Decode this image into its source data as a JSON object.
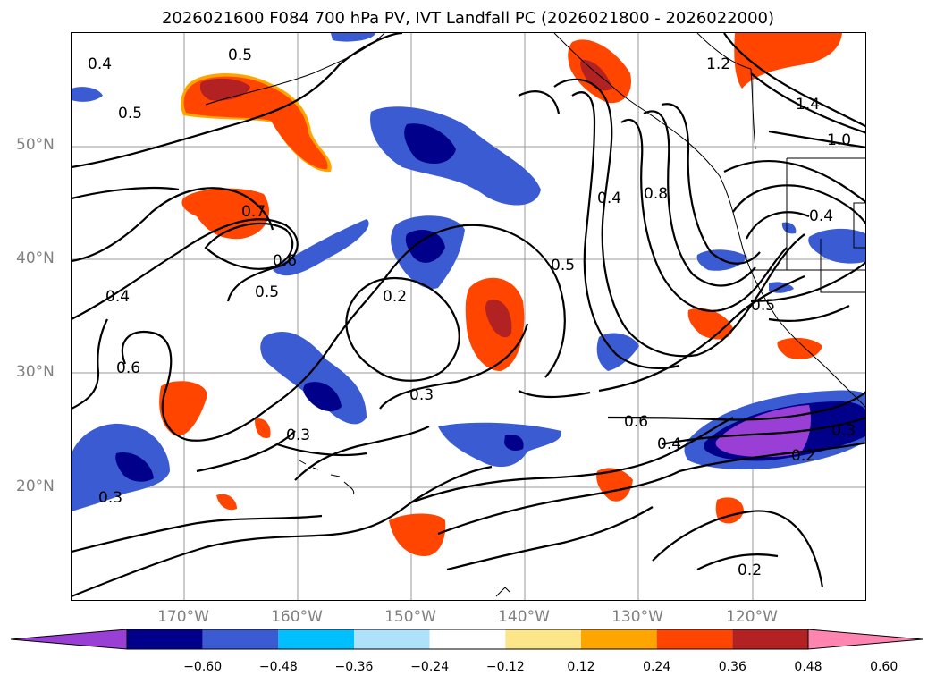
{
  "title": "2026021600 F084 700 hPa PV, IVT Landfall PC (2026021800 - 2026022000)",
  "map": {
    "lat_labels": [
      "50°N",
      "40°N",
      "30°N",
      "20°N"
    ],
    "lon_labels": [
      "170°W",
      "160°W",
      "150°W",
      "140°W",
      "130°W",
      "120°W"
    ],
    "contour_labels": [
      "0.4",
      "0.5",
      "0.5",
      "0.7",
      "0.6",
      "0.5",
      "0.4",
      "0.6",
      "0.3",
      "0.2",
      "0.3",
      "0.3",
      "0.4",
      "0.8",
      "0.5",
      "1.2",
      "1.4",
      "1.0",
      "0.5",
      "0.6",
      "0.4",
      "0.2",
      "0.3",
      "0.2",
      "0.4"
    ]
  },
  "colorbar": {
    "ticks": [
      "−0.60",
      "−0.48",
      "−0.36",
      "−0.24",
      "−0.12",
      "0.12",
      "0.24",
      "0.36",
      "0.48",
      "0.60"
    ],
    "colors": [
      "#9a3fd6",
      "#00008b",
      "#3a5bd1",
      "#00bfff",
      "#aee2fb",
      "#ffffff",
      "#fde68a",
      "#ffa500",
      "#ff4500",
      "#b22222",
      "#ff85b0"
    ]
  },
  "legend_colors": {
    "strong_negative": "#00008b",
    "negative": "#3a5bd1",
    "weak_negative": "#00bfff",
    "positive": "#ff4500",
    "strong_positive": "#b22222",
    "min": "#9a3fd6"
  }
}
